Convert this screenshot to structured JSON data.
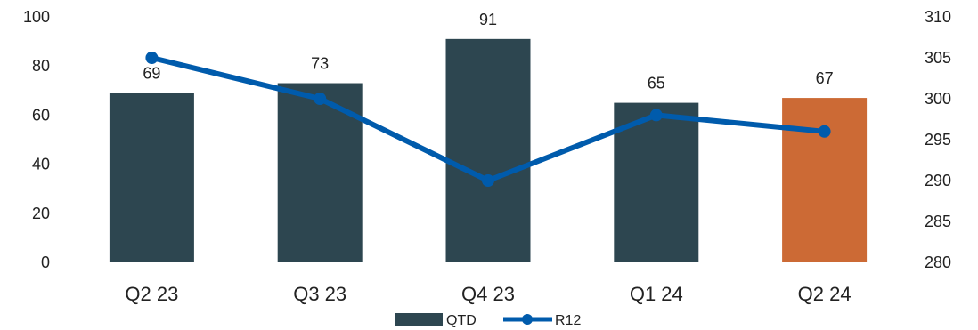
{
  "chart_data": {
    "type": "bar",
    "categories": [
      "Q2 23",
      "Q3 23",
      "Q4 23",
      "Q1 24",
      "Q2 24"
    ],
    "series": [
      {
        "name": "QTD",
        "type": "bar",
        "axis": "left",
        "values": [
          69,
          73,
          91,
          65,
          67
        ],
        "colors": [
          "#2d4650",
          "#2d4650",
          "#2d4650",
          "#2d4650",
          "#cc6a35"
        ]
      },
      {
        "name": "R12",
        "type": "line",
        "axis": "right",
        "values": [
          305,
          300,
          290,
          298,
          296
        ],
        "color": "#005bac"
      }
    ],
    "y_left": {
      "min": 0,
      "max": 100,
      "ticks": [
        0,
        20,
        40,
        60,
        80,
        100
      ]
    },
    "y_right": {
      "min": 280,
      "max": 310,
      "ticks": [
        280,
        285,
        290,
        295,
        300,
        305,
        310
      ]
    },
    "data_labels": [
      "69",
      "73",
      "91",
      "65",
      "67"
    ],
    "legend": {
      "position": "bottom",
      "items": [
        "QTD",
        "R12"
      ]
    },
    "grid": false,
    "title": "",
    "xlabel": "",
    "ylabel": ""
  }
}
